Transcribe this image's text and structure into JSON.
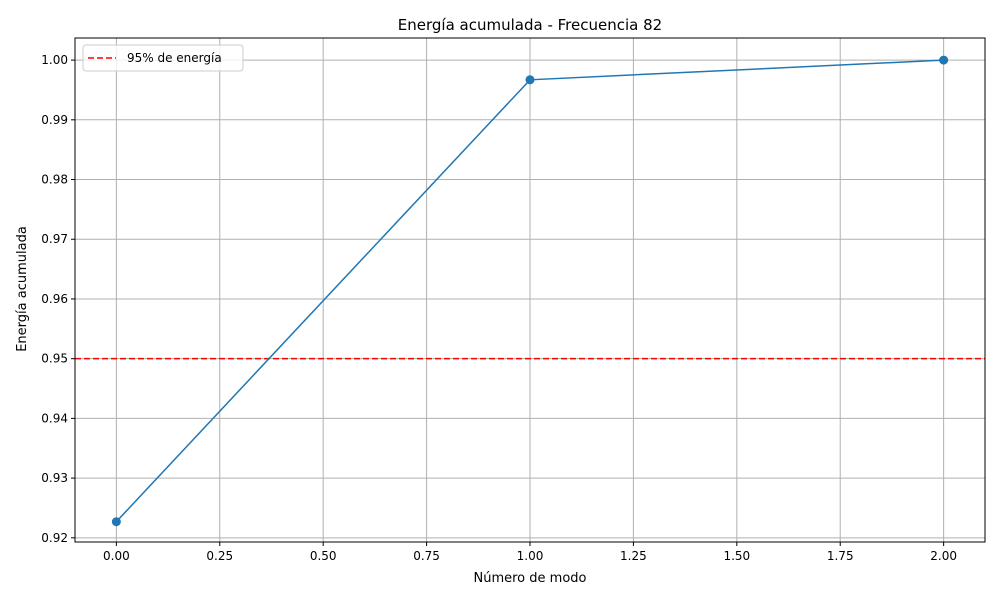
{
  "chart_data": {
    "type": "line",
    "title": "Energía acumulada - Frecuencia 82",
    "xlabel": "Número de modo",
    "ylabel": "Energía acumulada",
    "xlim": [
      -0.1,
      2.1
    ],
    "ylim": [
      0.9193,
      1.0037
    ],
    "xticks": [
      0.0,
      0.25,
      0.5,
      0.75,
      1.0,
      1.25,
      1.5,
      1.75,
      2.0
    ],
    "xtick_labels": [
      "0.00",
      "0.25",
      "0.50",
      "0.75",
      "1.00",
      "1.25",
      "1.50",
      "1.75",
      "2.00"
    ],
    "yticks": [
      0.92,
      0.93,
      0.94,
      0.95,
      0.96,
      0.97,
      0.98,
      0.99,
      1.0
    ],
    "ytick_labels": [
      "0.92",
      "0.93",
      "0.94",
      "0.95",
      "0.96",
      "0.97",
      "0.98",
      "0.99",
      "1.00"
    ],
    "grid": true,
    "series": [
      {
        "x": [
          0,
          1,
          2
        ],
        "y": [
          0.9227,
          0.9967,
          1.0
        ],
        "color": "#1f77b4",
        "marker": "circle"
      }
    ],
    "reference_lines": [
      {
        "orientation": "horizontal",
        "y": 0.95,
        "color": "#ff0000",
        "style": "dashed",
        "label": "95% de energía"
      }
    ],
    "legend": {
      "placement": "top-left",
      "entries": [
        "95% de energía"
      ]
    },
    "colors": {
      "axes": "#000000",
      "grid": "#b0b0b0",
      "background": "#ffffff"
    }
  }
}
